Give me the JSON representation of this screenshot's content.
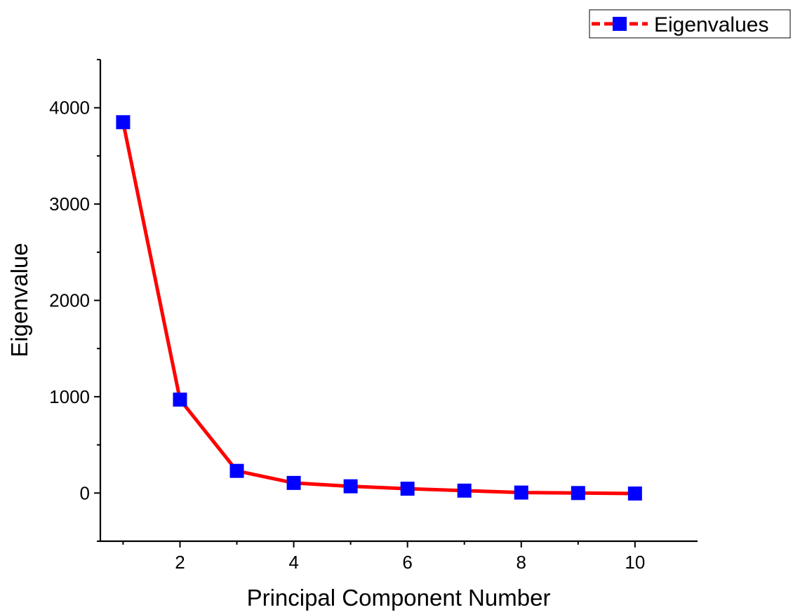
{
  "chart_data": {
    "type": "line",
    "title": "",
    "xlabel": "Principal Component Number",
    "ylabel": "Eigenvalue",
    "xlim": [
      0.6,
      11.1
    ],
    "ylim": [
      -500,
      4500
    ],
    "x_ticks": [
      2,
      4,
      6,
      8,
      10
    ],
    "x_minor_ticks": [
      1,
      3,
      5,
      7,
      9
    ],
    "y_ticks": [
      0,
      1000,
      2000,
      3000,
      4000
    ],
    "y_minor_ticks": [
      -500,
      500,
      1500,
      2500,
      3500,
      4500
    ],
    "grid": false,
    "legend_position": "top-right",
    "series": [
      {
        "name": "Eigenvalues",
        "line_color": "#ff0000",
        "marker_color": "#0000ff",
        "marker": "square",
        "x": [
          1,
          2,
          3,
          4,
          5,
          6,
          7,
          8,
          9,
          10
        ],
        "values": [
          3850,
          970,
          230,
          105,
          70,
          45,
          25,
          5,
          0,
          -5
        ]
      }
    ]
  }
}
